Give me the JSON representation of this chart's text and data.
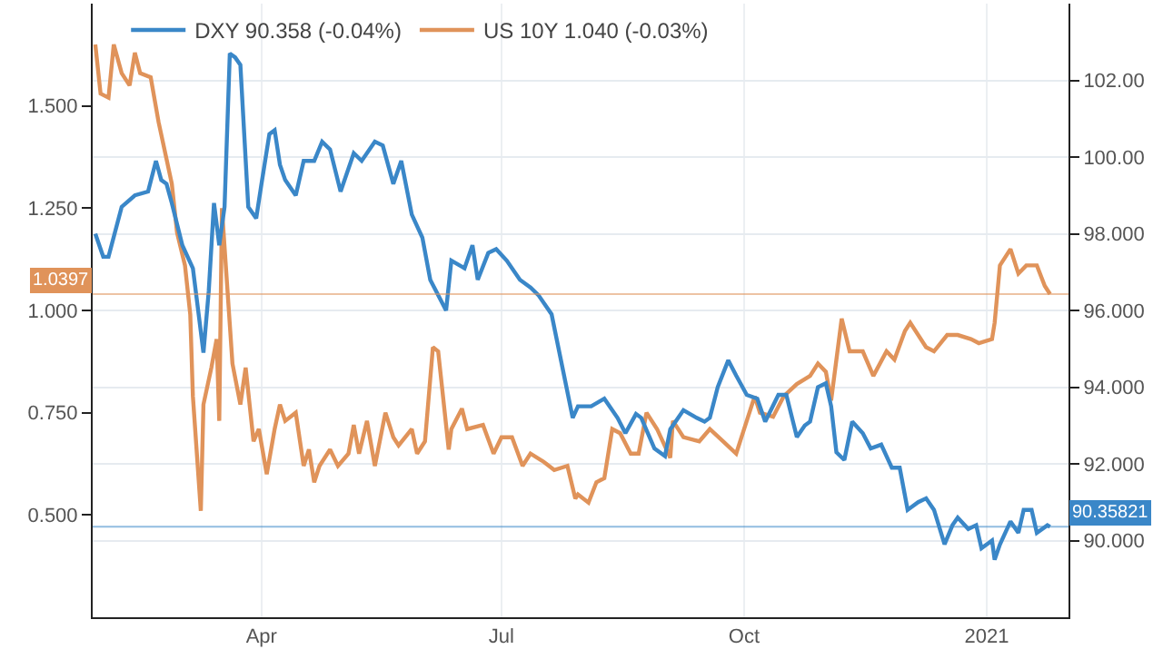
{
  "chart_data": {
    "type": "line",
    "grid": true,
    "legend": "top left",
    "marker": "none",
    "line_style": "solid",
    "xlim": [
      "2020-01-28",
      "2021-02-01"
    ],
    "xticks": [
      {
        "value": "2020-04-01",
        "label": "Apr"
      },
      {
        "value": "2020-07-01",
        "label": "Jul"
      },
      {
        "value": "2020-10-01",
        "label": "Oct"
      },
      {
        "value": "2021-01-01",
        "label": "2021"
      }
    ],
    "ylim": [
      0.25,
      1.75
    ],
    "yticks": [
      {
        "value": 0.5,
        "label": "0.500"
      },
      {
        "value": 0.75,
        "label": "0.750"
      },
      {
        "value": 1.0,
        "label": "1.000"
      },
      {
        "value": 1.25,
        "label": "1.250"
      },
      {
        "value": 1.5,
        "label": "1.500"
      }
    ],
    "y2lim": [
      88,
      104
    ],
    "y2ticks": [
      {
        "value": 90,
        "label": "90.000"
      },
      {
        "value": 92,
        "label": "92.000"
      },
      {
        "value": 94,
        "label": "94.000"
      },
      {
        "value": 96,
        "label": "96.000"
      },
      {
        "value": 98,
        "label": "98.000"
      },
      {
        "value": 100,
        "label": "100.00"
      },
      {
        "value": 102,
        "label": "102.00"
      }
    ],
    "ref_lines": [
      {
        "axis": "y",
        "value": 1.0397,
        "label": "1.0397",
        "color": "#e0935a"
      },
      {
        "axis": "y2",
        "value": 90.35821,
        "label": "90.35821",
        "color": "#3a87c8"
      }
    ],
    "series": [
      {
        "name": "DXY 90.358 (-0.04%)",
        "color": "#3a87c8",
        "axis": "y2",
        "x": [
          "2020-01-29",
          "2020-02-01",
          "2020-02-03",
          "2020-02-08",
          "2020-02-13",
          "2020-02-18",
          "2020-02-21",
          "2020-02-23",
          "2020-02-25",
          "2020-02-27",
          "2020-03-02",
          "2020-03-06",
          "2020-03-10",
          "2020-03-12",
          "2020-03-14",
          "2020-03-16",
          "2020-03-18",
          "2020-03-20",
          "2020-03-22",
          "2020-03-24",
          "2020-03-27",
          "2020-03-30",
          "2020-04-01",
          "2020-04-04",
          "2020-04-06",
          "2020-04-08",
          "2020-04-10",
          "2020-04-14",
          "2020-04-17",
          "2020-04-21",
          "2020-04-24",
          "2020-04-27",
          "2020-05-01",
          "2020-05-06",
          "2020-05-09",
          "2020-05-14",
          "2020-05-17",
          "2020-05-21",
          "2020-05-24",
          "2020-05-28",
          "2020-06-01",
          "2020-06-04",
          "2020-06-10",
          "2020-06-12",
          "2020-06-17",
          "2020-06-20",
          "2020-06-22",
          "2020-06-26",
          "2020-06-29",
          "2020-07-03",
          "2020-07-08",
          "2020-07-12",
          "2020-07-15",
          "2020-07-20",
          "2020-07-28",
          "2020-07-30",
          "2020-08-04",
          "2020-08-09",
          "2020-08-14",
          "2020-08-17",
          "2020-08-21",
          "2020-08-23",
          "2020-08-28",
          "2020-09-01",
          "2020-09-03",
          "2020-09-08",
          "2020-09-13",
          "2020-09-16",
          "2020-09-18",
          "2020-09-21",
          "2020-09-25",
          "2020-09-28",
          "2020-10-02",
          "2020-10-06",
          "2020-10-09",
          "2020-10-14",
          "2020-10-17",
          "2020-10-21",
          "2020-10-24",
          "2020-10-26",
          "2020-10-29",
          "2020-11-01",
          "2020-11-03",
          "2020-11-05",
          "2020-11-08",
          "2020-11-11",
          "2020-11-15",
          "2020-11-18",
          "2020-11-22",
          "2020-11-26",
          "2020-11-29",
          "2020-12-02",
          "2020-12-06",
          "2020-12-09",
          "2020-12-12",
          "2020-12-16",
          "2020-12-19",
          "2020-12-21",
          "2020-12-25",
          "2020-12-28",
          "2020-12-30",
          "2021-01-03",
          "2021-01-04",
          "2021-01-06",
          "2021-01-10",
          "2021-01-13",
          "2021-01-15",
          "2021-01-18",
          "2021-01-20",
          "2021-01-24",
          "2021-01-25"
        ],
        "values": [
          98.0,
          97.4,
          97.4,
          98.7,
          99.0,
          99.1,
          99.9,
          99.4,
          99.3,
          98.8,
          97.7,
          97.1,
          94.9,
          96.5,
          98.8,
          97.7,
          98.7,
          102.7,
          102.6,
          102.4,
          98.7,
          98.4,
          99.3,
          100.6,
          100.7,
          99.8,
          99.4,
          99.0,
          99.9,
          99.9,
          100.4,
          100.2,
          99.1,
          100.1,
          99.9,
          100.4,
          100.3,
          99.3,
          99.9,
          98.5,
          97.9,
          96.8,
          96.0,
          97.3,
          97.1,
          97.7,
          96.8,
          97.5,
          97.6,
          97.3,
          96.8,
          96.6,
          96.4,
          95.9,
          93.2,
          93.5,
          93.5,
          93.7,
          93.2,
          92.8,
          93.3,
          93.2,
          92.4,
          92.2,
          92.9,
          93.4,
          93.2,
          93.1,
          93.2,
          94.0,
          94.7,
          94.3,
          93.8,
          93.7,
          93.1,
          93.8,
          93.8,
          92.7,
          93.0,
          93.1,
          94.0,
          94.1,
          93.5,
          92.3,
          92.1,
          93.1,
          92.8,
          92.4,
          92.5,
          91.9,
          91.9,
          90.8,
          91.0,
          91.1,
          90.8,
          89.9,
          90.4,
          90.6,
          90.3,
          90.4,
          89.8,
          90.0,
          89.5,
          89.9,
          90.5,
          90.2,
          90.8,
          90.8,
          90.2,
          90.4,
          90.36
        ]
      },
      {
        "name": "US 10Y 1.040 (-0.03%)",
        "color": "#e0935a",
        "axis": "y",
        "x": [
          "2020-01-29",
          "2020-01-31",
          "2020-02-03",
          "2020-02-05",
          "2020-02-08",
          "2020-02-11",
          "2020-02-13",
          "2020-02-15",
          "2020-02-19",
          "2020-02-22",
          "2020-02-25",
          "2020-02-27",
          "2020-02-29",
          "2020-03-03",
          "2020-03-05",
          "2020-03-06",
          "2020-03-09",
          "2020-03-10",
          "2020-03-13",
          "2020-03-15",
          "2020-03-16",
          "2020-03-17",
          "2020-03-21",
          "2020-03-24",
          "2020-03-26",
          "2020-03-29",
          "2020-03-31",
          "2020-04-03",
          "2020-04-06",
          "2020-04-08",
          "2020-04-10",
          "2020-04-14",
          "2020-04-17",
          "2020-04-19",
          "2020-04-21",
          "2020-04-23",
          "2020-04-27",
          "2020-04-30",
          "2020-05-04",
          "2020-05-06",
          "2020-05-08",
          "2020-05-11",
          "2020-05-14",
          "2020-05-18",
          "2020-05-21",
          "2020-05-23",
          "2020-05-28",
          "2020-05-30",
          "2020-06-02",
          "2020-06-05",
          "2020-06-07",
          "2020-06-11",
          "2020-06-12",
          "2020-06-16",
          "2020-06-18",
          "2020-06-24",
          "2020-06-28",
          "2020-07-01",
          "2020-07-05",
          "2020-07-09",
          "2020-07-12",
          "2020-07-17",
          "2020-07-21",
          "2020-07-26",
          "2020-07-29",
          "2020-07-30",
          "2020-08-03",
          "2020-08-06",
          "2020-08-09",
          "2020-08-12",
          "2020-08-15",
          "2020-08-19",
          "2020-08-22",
          "2020-08-25",
          "2020-08-29",
          "2020-09-03",
          "2020-09-04",
          "2020-09-08",
          "2020-09-14",
          "2020-09-18",
          "2020-09-23",
          "2020-09-28",
          "2020-10-02",
          "2020-10-05",
          "2020-10-07",
          "2020-10-12",
          "2020-10-16",
          "2020-10-21",
          "2020-10-26",
          "2020-10-29",
          "2020-11-01",
          "2020-11-03",
          "2020-11-07",
          "2020-11-10",
          "2020-11-15",
          "2020-11-19",
          "2020-11-24",
          "2020-11-27",
          "2020-12-01",
          "2020-12-03",
          "2020-12-09",
          "2020-12-12",
          "2020-12-17",
          "2020-12-21",
          "2020-12-26",
          "2020-12-29",
          "2021-01-03",
          "2021-01-04",
          "2021-01-06",
          "2021-01-10",
          "2021-01-13",
          "2021-01-16",
          "2021-01-20",
          "2021-01-23",
          "2021-01-25"
        ],
        "values": [
          1.65,
          1.53,
          1.52,
          1.65,
          1.58,
          1.55,
          1.63,
          1.58,
          1.57,
          1.46,
          1.37,
          1.31,
          1.19,
          1.11,
          0.99,
          0.79,
          0.51,
          0.77,
          0.86,
          0.93,
          0.73,
          1.25,
          0.87,
          0.77,
          0.86,
          0.68,
          0.71,
          0.6,
          0.71,
          0.77,
          0.73,
          0.75,
          0.62,
          0.66,
          0.58,
          0.62,
          0.66,
          0.62,
          0.65,
          0.72,
          0.65,
          0.73,
          0.62,
          0.75,
          0.69,
          0.67,
          0.71,
          0.65,
          0.68,
          0.91,
          0.9,
          0.66,
          0.71,
          0.76,
          0.71,
          0.72,
          0.65,
          0.69,
          0.69,
          0.62,
          0.65,
          0.63,
          0.61,
          0.62,
          0.54,
          0.55,
          0.53,
          0.58,
          0.59,
          0.71,
          0.7,
          0.65,
          0.65,
          0.75,
          0.71,
          0.64,
          0.73,
          0.69,
          0.68,
          0.71,
          0.68,
          0.65,
          0.73,
          0.79,
          0.75,
          0.74,
          0.79,
          0.82,
          0.84,
          0.87,
          0.85,
          0.78,
          0.98,
          0.9,
          0.9,
          0.84,
          0.9,
          0.88,
          0.95,
          0.97,
          0.91,
          0.9,
          0.94,
          0.94,
          0.93,
          0.92,
          0.93,
          0.97,
          1.11,
          1.15,
          1.09,
          1.11,
          1.11,
          1.06,
          1.04
        ]
      }
    ]
  }
}
